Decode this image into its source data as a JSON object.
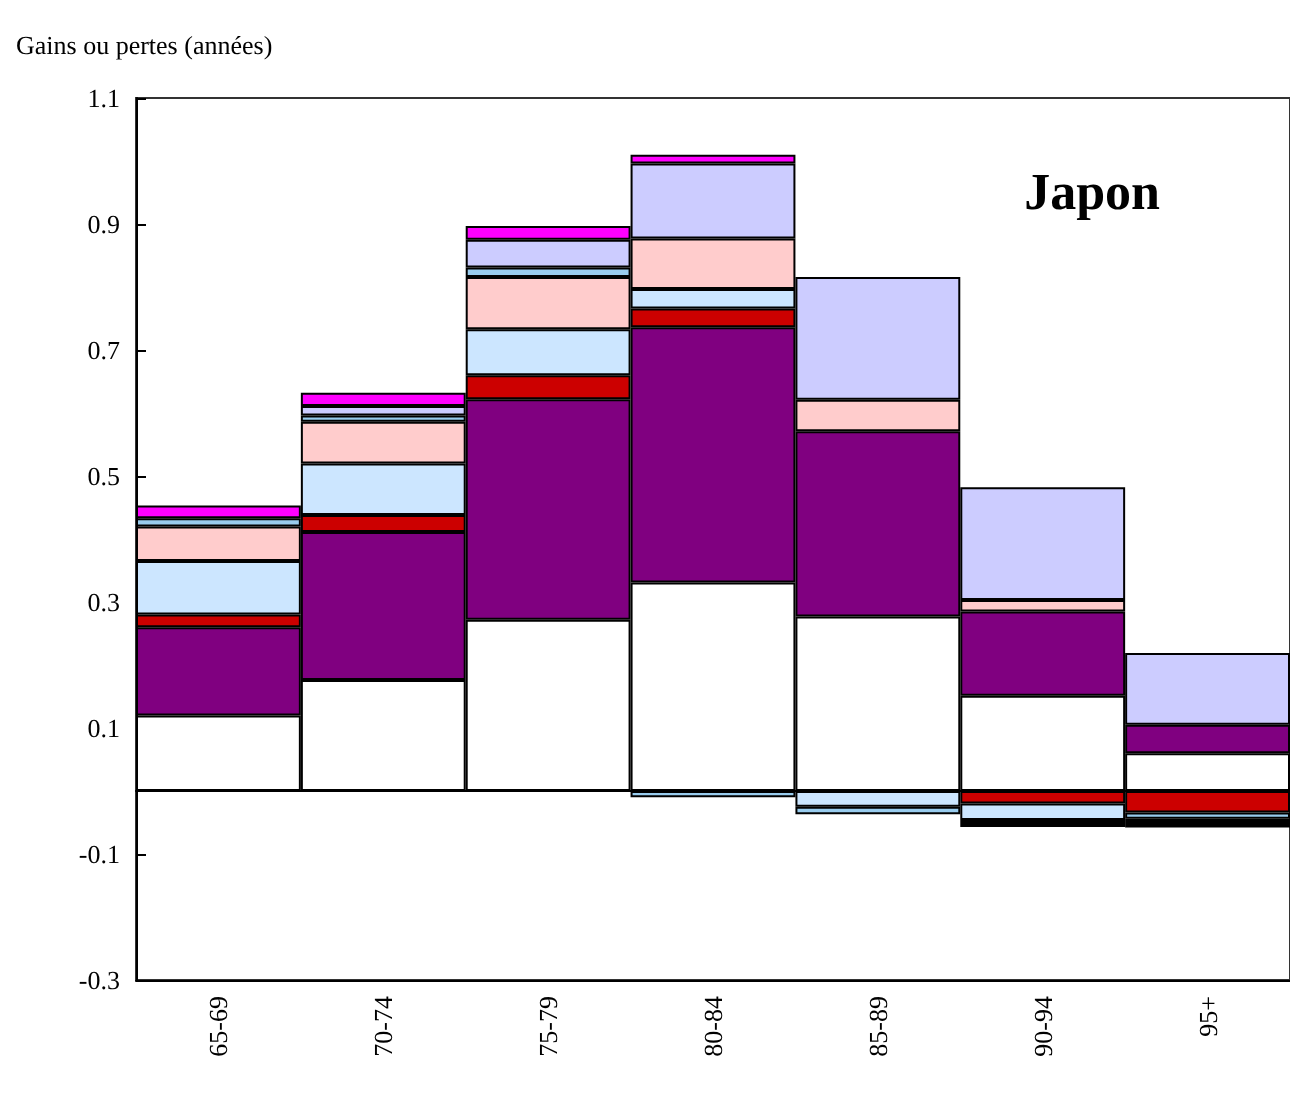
{
  "chart_data": {
    "type": "bar",
    "stacked": true,
    "title": "Japon",
    "ylabel": "Gains ou pertes (années)",
    "categories": [
      "65-69",
      "70-74",
      "75-79",
      "80-84",
      "85-89",
      "90-94",
      "95+"
    ],
    "series": [
      {
        "color": "#ffffff",
        "values": [
          0.12,
          0.176,
          0.272,
          0.331,
          0.277,
          0.151,
          0.06
        ]
      },
      {
        "color": "#800080",
        "values": [
          0.14,
          0.235,
          0.35,
          0.405,
          0.294,
          0.134,
          0.045
        ]
      },
      {
        "color": "#cc0000",
        "values": [
          0.02,
          0.027,
          0.038,
          0.03,
          null,
          -0.02,
          -0.034
        ]
      },
      {
        "color": "#cce6ff",
        "values": [
          0.085,
          0.082,
          0.073,
          0.031,
          -0.025,
          -0.026,
          null
        ]
      },
      {
        "color": "#ffcccc",
        "values": [
          0.055,
          0.066,
          0.083,
          0.08,
          0.05,
          0.018,
          null
        ]
      },
      {
        "color": "#99ccee",
        "values": [
          0.013,
          0.01,
          0.015,
          -0.01,
          -0.012,
          null,
          -0.01
        ]
      },
      {
        "color": "#ccccff",
        "values": [
          null,
          0.015,
          0.044,
          0.119,
          0.195,
          0.179,
          0.114
        ]
      },
      {
        "color": "#ff00ff",
        "values": [
          0.02,
          0.021,
          0.022,
          0.014,
          null,
          null,
          null
        ]
      },
      {
        "color": "#000000",
        "values": [
          null,
          null,
          null,
          null,
          null,
          -0.011,
          -0.014
        ]
      }
    ],
    "ylim": [
      -0.3,
      1.1
    ],
    "yticks": [
      -0.3,
      -0.1,
      0.1,
      0.3,
      0.5,
      0.7,
      0.9,
      1.1
    ]
  }
}
